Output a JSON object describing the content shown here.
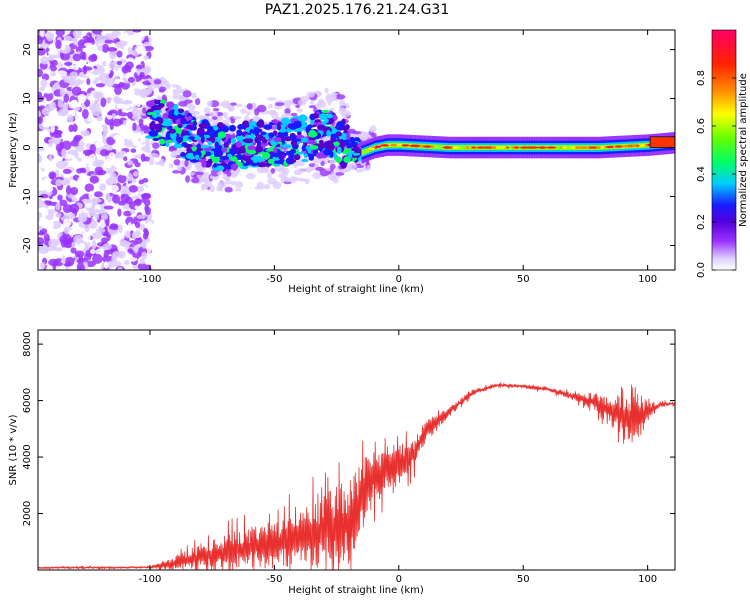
{
  "title": "PAZ1.2025.176.21.24.G31",
  "colors": {
    "snr_line": "#e8302e",
    "colormap": [
      "#ffffff",
      "#ddccff",
      "#9933ff",
      "#5500cc",
      "#1a1aff",
      "#00ccff",
      "#00ff66",
      "#99ff00",
      "#ffff00",
      "#ff8800",
      "#ff2200",
      "#ff0066"
    ]
  },
  "chart_data": [
    {
      "type": "heatmap",
      "xlabel": "Height of straight line (km)",
      "ylabel": "Frequency (Hz)",
      "xlim": [
        -145,
        111
      ],
      "ylim": [
        -25,
        24
      ],
      "xticks": [
        -100,
        -50,
        0,
        50,
        100
      ],
      "yticks": [
        -20,
        -10,
        0,
        10,
        20
      ],
      "grid": false,
      "colorbar": {
        "label": "Normalized spectral amplitude",
        "range": [
          0,
          1
        ],
        "ticks": [
          0.0,
          0.2,
          0.4,
          0.6,
          0.8
        ]
      },
      "ridge": {
        "description_points_x": [
          -100,
          -90,
          -80,
          -70,
          -60,
          -50,
          -40,
          -30,
          -25,
          -20,
          -15,
          -10,
          -5,
          0,
          20,
          40,
          60,
          80,
          100,
          111
        ],
        "description_points_y": [
          6,
          4,
          1,
          0,
          0.5,
          1,
          1.5,
          3,
          2,
          0,
          -1,
          0,
          0.5,
          0.5,
          0,
          0,
          0,
          0,
          0.5,
          1
        ]
      }
    },
    {
      "type": "line",
      "xlabel": "Height of straight line (km)",
      "ylabel": "SNR (10 * v/v)",
      "xlim": [
        -145,
        111
      ],
      "ylim": [
        0,
        8500
      ],
      "xticks": [
        -100,
        -50,
        0,
        50,
        100
      ],
      "yticks": [
        2000,
        4000,
        6000,
        8000
      ],
      "grid": false,
      "envelope": {
        "x": [
          -145,
          -110,
          -100,
          -90,
          -80,
          -70,
          -60,
          -50,
          -40,
          -30,
          -20,
          -15,
          -10,
          -5,
          0,
          5,
          10,
          20,
          30,
          40,
          50,
          60,
          70,
          80,
          85,
          90,
          95,
          100,
          105,
          111
        ],
        "base": [
          80,
          90,
          100,
          250,
          450,
          650,
          800,
          900,
          1150,
          1400,
          1700,
          2600,
          3300,
          3600,
          3800,
          4000,
          4800,
          5600,
          6300,
          6550,
          6500,
          6400,
          6150,
          5900,
          5600,
          5500,
          5400,
          5600,
          5850,
          5900
        ],
        "amp": [
          60,
          60,
          60,
          400,
          800,
          1100,
          1200,
          1400,
          1800,
          2200,
          2500,
          2300,
          1700,
          1400,
          1200,
          1000,
          700,
          300,
          150,
          100,
          100,
          150,
          200,
          600,
          900,
          1300,
          1700,
          600,
          150,
          100
        ]
      }
    }
  ]
}
